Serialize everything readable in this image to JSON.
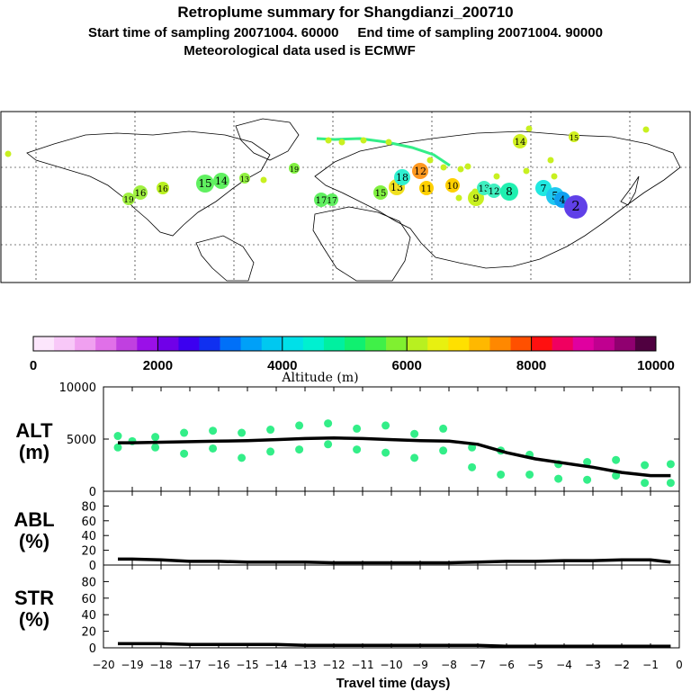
{
  "header": {
    "title": "Retroplume summary for Shangdianzi_200710",
    "sampling": "Start time of sampling 20071004. 60000     End time of sampling 20071004. 90000",
    "met": "Meteorological data used is ECMWF"
  },
  "colors": {
    "plume": "#33ee88",
    "line": "#000000",
    "text": "#000000"
  },
  "map": {
    "point_labels": [
      {
        "label": "19"
      },
      {
        "label": "16"
      },
      {
        "label": "16"
      },
      {
        "label": "15"
      },
      {
        "label": "14"
      },
      {
        "label": "13"
      },
      {
        "label": "19"
      },
      {
        "label": "17"
      },
      {
        "label": "15"
      },
      {
        "label": "13"
      },
      {
        "label": "11"
      },
      {
        "label": "12"
      },
      {
        "label": "18"
      },
      {
        "label": "10"
      },
      {
        "label": "9"
      },
      {
        "label": "13"
      },
      {
        "label": "12"
      },
      {
        "label": "8"
      },
      {
        "label": "7"
      },
      {
        "label": "5"
      },
      {
        "label": "4"
      },
      {
        "label": "14"
      },
      {
        "label": "15"
      },
      {
        "label": "17"
      },
      {
        "label": "2"
      }
    ]
  },
  "colorbar": {
    "ticks": [
      "0",
      "2000",
      "4000",
      "6000",
      "8000",
      "10000"
    ],
    "label": "Altitude (m)",
    "colors": [
      "#fce6fc",
      "#f8c8f8",
      "#f0a0f0",
      "#e070e8",
      "#c040e0",
      "#9a10e8",
      "#7000e8",
      "#3c00f0",
      "#1030f0",
      "#0070f8",
      "#00a0f8",
      "#00c8f0",
      "#00e0e8",
      "#00f0d0",
      "#00f0a0",
      "#10f070",
      "#40f048",
      "#80f030",
      "#b8f020",
      "#e8f010",
      "#ffe000",
      "#ffb800",
      "#ff8800",
      "#ff5000",
      "#ff1010",
      "#f00060",
      "#e000a0",
      "#c00090",
      "#900070",
      "#500040"
    ]
  },
  "chart_data": [
    {
      "type": "line",
      "panel": "ALT",
      "ylabel": [
        "ALT",
        "(m)"
      ],
      "ylim": [
        0,
        10000
      ],
      "yticks": [
        "0",
        "5000",
        "10000"
      ],
      "xlim": [
        -20,
        0
      ],
      "x": [
        -19.5,
        -19,
        -18,
        -17,
        -16,
        -15,
        -14,
        -13,
        -12,
        -11,
        -10,
        -9,
        -8,
        -7,
        -6,
        -5,
        -4,
        -3,
        -2,
        -1,
        -0.3
      ],
      "values": [
        4650,
        4650,
        4700,
        4750,
        4800,
        4850,
        4950,
        5050,
        5100,
        5050,
        4950,
        4850,
        4800,
        4500,
        3700,
        3100,
        2700,
        2300,
        1800,
        1500,
        1500
      ],
      "particles": [
        {
          "x": -19.5,
          "y": 5300
        },
        {
          "x": -19.5,
          "y": 4200
        },
        {
          "x": -19,
          "y": 4800
        },
        {
          "x": -18.2,
          "y": 5200
        },
        {
          "x": -18.2,
          "y": 4200
        },
        {
          "x": -17.2,
          "y": 5600
        },
        {
          "x": -17.2,
          "y": 3600
        },
        {
          "x": -16.2,
          "y": 5800
        },
        {
          "x": -16.2,
          "y": 4100
        },
        {
          "x": -15.2,
          "y": 5600
        },
        {
          "x": -15.2,
          "y": 3200
        },
        {
          "x": -14.2,
          "y": 5900
        },
        {
          "x": -14.2,
          "y": 3800
        },
        {
          "x": -13.2,
          "y": 6300
        },
        {
          "x": -13.2,
          "y": 4000
        },
        {
          "x": -12.2,
          "y": 6500
        },
        {
          "x": -12.2,
          "y": 4500
        },
        {
          "x": -11.2,
          "y": 6000
        },
        {
          "x": -11.2,
          "y": 4000
        },
        {
          "x": -10.2,
          "y": 6300
        },
        {
          "x": -10.2,
          "y": 3700
        },
        {
          "x": -9.2,
          "y": 5500
        },
        {
          "x": -9.2,
          "y": 3200
        },
        {
          "x": -8.2,
          "y": 6000
        },
        {
          "x": -8.2,
          "y": 3900
        },
        {
          "x": -7.2,
          "y": 4200
        },
        {
          "x": -7.2,
          "y": 2300
        },
        {
          "x": -6.2,
          "y": 3900
        },
        {
          "x": -6.2,
          "y": 1600
        },
        {
          "x": -5.2,
          "y": 3500
        },
        {
          "x": -5.2,
          "y": 1600
        },
        {
          "x": -4.2,
          "y": 2600
        },
        {
          "x": -4.2,
          "y": 1200
        },
        {
          "x": -3.2,
          "y": 2800
        },
        {
          "x": -3.2,
          "y": 1100
        },
        {
          "x": -2.2,
          "y": 3000
        },
        {
          "x": -2.2,
          "y": 1500
        },
        {
          "x": -1.2,
          "y": 2500
        },
        {
          "x": -1.2,
          "y": 800
        },
        {
          "x": -0.3,
          "y": 2600
        },
        {
          "x": -0.3,
          "y": 800
        }
      ]
    },
    {
      "type": "line",
      "panel": "ABL",
      "ylabel": [
        "ABL",
        "(%)"
      ],
      "ylim": [
        0,
        100
      ],
      "yticks": [
        "0",
        "20",
        "40",
        "60",
        "80"
      ],
      "xlim": [
        -20,
        0
      ],
      "x": [
        -19.5,
        -19,
        -18,
        -17,
        -16,
        -15,
        -14,
        -13,
        -12,
        -11,
        -10,
        -9,
        -8,
        -7,
        -6,
        -5,
        -4,
        -3,
        -2,
        -1,
        -0.3
      ],
      "values": [
        8,
        8,
        7,
        5,
        5,
        4,
        4,
        4,
        3,
        3,
        3,
        3,
        3,
        4,
        5,
        5,
        6,
        6,
        7,
        7,
        4
      ]
    },
    {
      "type": "line",
      "panel": "STR",
      "ylabel": [
        "STR",
        "(%)"
      ],
      "ylim": [
        0,
        100
      ],
      "yticks": [
        "0",
        "20",
        "40",
        "60",
        "80"
      ],
      "xlim": [
        -20,
        0
      ],
      "x": [
        -19.5,
        -19,
        -18,
        -17,
        -16,
        -15,
        -14,
        -13,
        -12,
        -11,
        -10,
        -9,
        -8,
        -7,
        -6,
        -5,
        -4,
        -3,
        -2,
        -1,
        -0.3
      ],
      "values": [
        5,
        5,
        5,
        4,
        4,
        4,
        4,
        3,
        3,
        3,
        3,
        3,
        3,
        3,
        2,
        2,
        2,
        2,
        2,
        2,
        2
      ]
    }
  ],
  "xaxis": {
    "ticks": [
      "−20",
      "−19",
      "−18",
      "−17",
      "−16",
      "−15",
      "−14",
      "−13",
      "−12",
      "−11",
      "−10",
      "−9",
      "−8",
      "−7",
      "−6",
      "−5",
      "−4",
      "−3",
      "−2",
      "−1",
      "0"
    ],
    "label": "Travel time (days)"
  }
}
